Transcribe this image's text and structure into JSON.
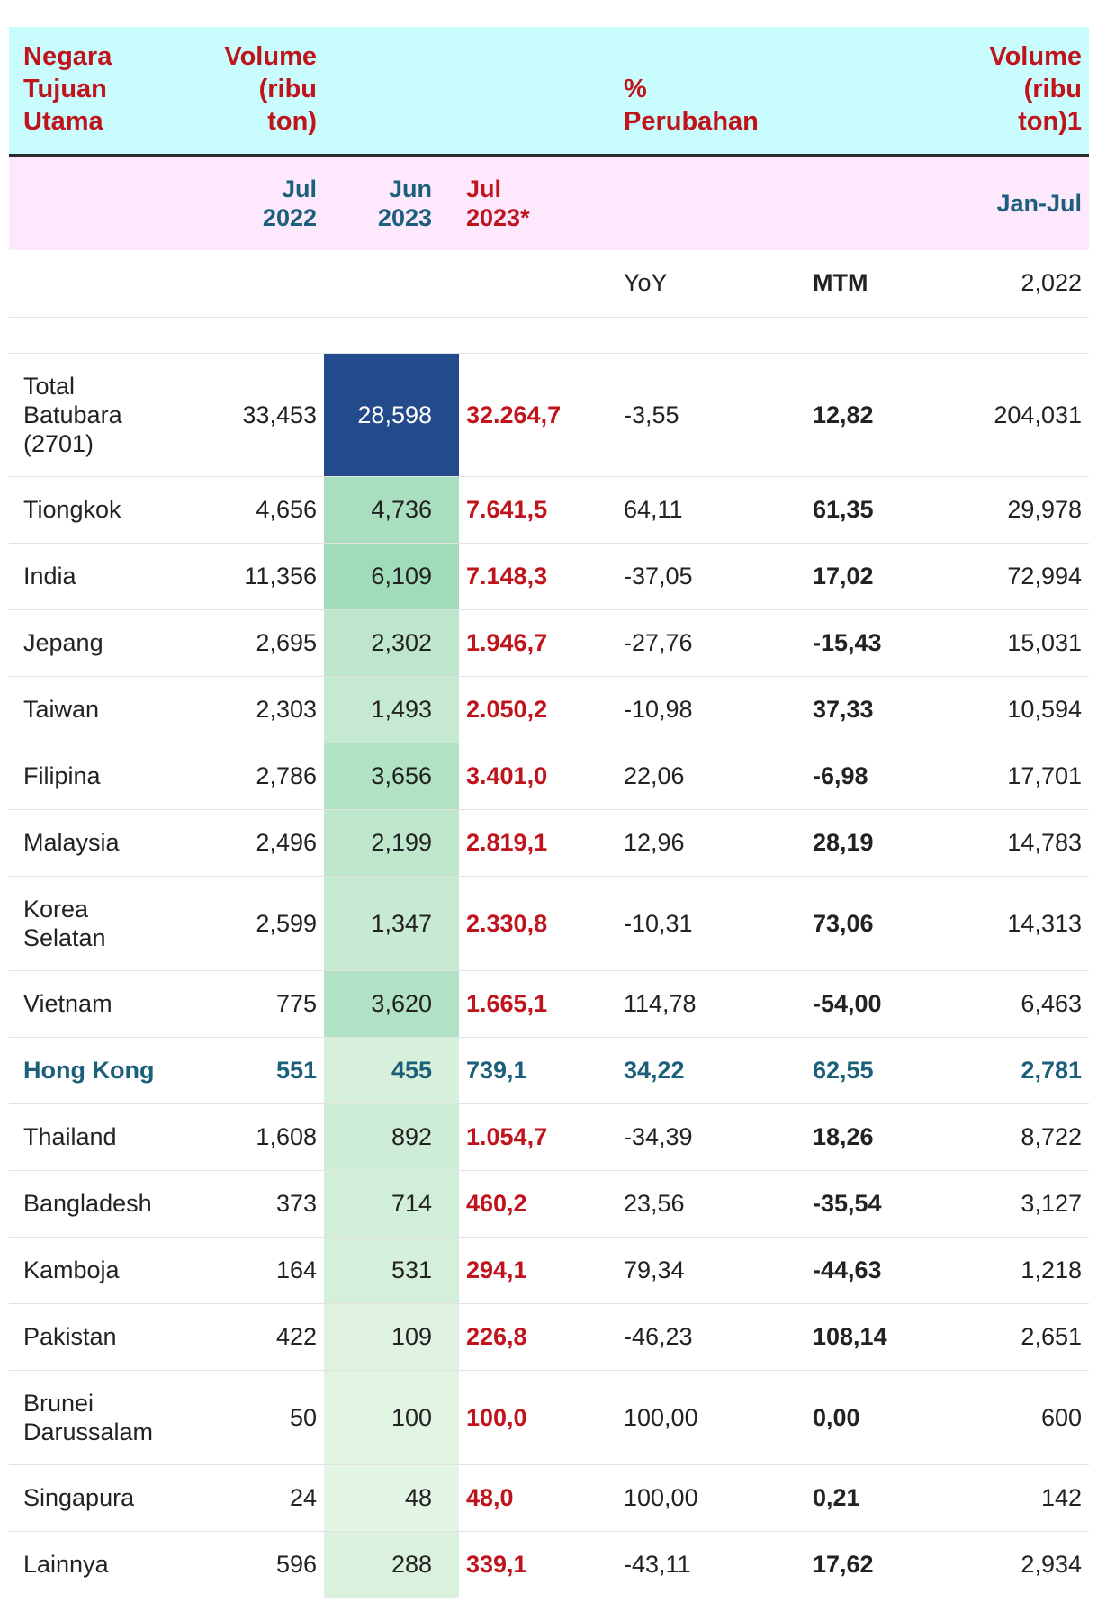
{
  "chart_data": {
    "type": "table",
    "header": {
      "country": "Negara\nTujuan\nUtama",
      "volume": "Volume\n(ribu\nton)",
      "change": "%\nPerubahan",
      "volume_cum": "Volume\n(ribu\nton)1"
    },
    "subheader": {
      "jul2022": "Jul\n2022",
      "jun2023": "Jun\n2023",
      "jul2023": "Jul\n2023*",
      "period": "Jan-Jul"
    },
    "subheader2": {
      "yoy": "YoY",
      "mtm": "MTM",
      "year": "2,022"
    },
    "rows": [
      {
        "country": "Total\nBatubara\n(2701)",
        "jul2022": "33,453",
        "jun2023": "28,598",
        "jul2023": "32.264,7",
        "yoy": "-3,55",
        "mtm": "12,82",
        "janjul": "204,031",
        "jun_value": 28598
      },
      {
        "country": "Tiongkok",
        "jul2022": "4,656",
        "jun2023": "4,736",
        "jul2023": "7.641,5",
        "yoy": "64,11",
        "mtm": "61,35",
        "janjul": "29,978",
        "jun_value": 4736
      },
      {
        "country": "India",
        "jul2022": "11,356",
        "jun2023": "6,109",
        "jul2023": "7.148,3",
        "yoy": "-37,05",
        "mtm": "17,02",
        "janjul": "72,994",
        "jun_value": 6109
      },
      {
        "country": "Jepang",
        "jul2022": "2,695",
        "jun2023": "2,302",
        "jul2023": "1.946,7",
        "yoy": "-27,76",
        "mtm": "-15,43",
        "janjul": "15,031",
        "jun_value": 2302
      },
      {
        "country": "Taiwan",
        "jul2022": "2,303",
        "jun2023": "1,493",
        "jul2023": "2.050,2",
        "yoy": "-10,98",
        "mtm": "37,33",
        "janjul": "10,594",
        "jun_value": 1493
      },
      {
        "country": "Filipina",
        "jul2022": "2,786",
        "jun2023": "3,656",
        "jul2023": "3.401,0",
        "yoy": "22,06",
        "mtm": "-6,98",
        "janjul": "17,701",
        "jun_value": 3656
      },
      {
        "country": "Malaysia",
        "jul2022": "2,496",
        "jun2023": "2,199",
        "jul2023": "2.819,1",
        "yoy": "12,96",
        "mtm": "28,19",
        "janjul": "14,783",
        "jun_value": 2199
      },
      {
        "country": "Korea\nSelatan",
        "jul2022": "2,599",
        "jun2023": "1,347",
        "jul2023": "2.330,8",
        "yoy": "-10,31",
        "mtm": "73,06",
        "janjul": "14,313",
        "jun_value": 1347
      },
      {
        "country": "Vietnam",
        "jul2022": "775",
        "jun2023": "3,620",
        "jul2023": "1.665,1",
        "yoy": "114,78",
        "mtm": "-54,00",
        "janjul": "6,463",
        "jun_value": 3620
      },
      {
        "country": "Hong Kong",
        "jul2022": "551",
        "jun2023": "455",
        "jul2023": "739,1",
        "yoy": "34,22",
        "mtm": "62,55",
        "janjul": "2,781",
        "jun_value": 455,
        "highlight": true
      },
      {
        "country": "Thailand",
        "jul2022": "1,608",
        "jun2023": "892",
        "jul2023": "1.054,7",
        "yoy": "-34,39",
        "mtm": "18,26",
        "janjul": "8,722",
        "jun_value": 892
      },
      {
        "country": "Bangladesh",
        "jul2022": "373",
        "jun2023": "714",
        "jul2023": "460,2",
        "yoy": "23,56",
        "mtm": "-35,54",
        "janjul": "3,127",
        "jun_value": 714
      },
      {
        "country": "Kamboja",
        "jul2022": "164",
        "jun2023": "531",
        "jul2023": "294,1",
        "yoy": "79,34",
        "mtm": "-44,63",
        "janjul": "1,218",
        "jun_value": 531
      },
      {
        "country": "Pakistan",
        "jul2022": "422",
        "jun2023": "109",
        "jul2023": "226,8",
        "yoy": "-46,23",
        "mtm": "108,14",
        "janjul": "2,651",
        "jun_value": 109
      },
      {
        "country": "Brunei\nDarussalam",
        "jul2022": "50",
        "jun2023": "100",
        "jul2023": "100,0",
        "yoy": "100,00",
        "mtm": "0,00",
        "janjul": "600",
        "jun_value": 100
      },
      {
        "country": "Singapura",
        "jul2022": "24",
        "jun2023": "48",
        "jul2023": "48,0",
        "yoy": "100,00",
        "mtm": "0,21",
        "janjul": "142",
        "jun_value": 48
      },
      {
        "country": "Lainnya",
        "jul2022": "596",
        "jun2023": "288",
        "jul2023": "339,1",
        "yoy": "-43,11",
        "mtm": "17,62",
        "janjul": "2,934",
        "jun_value": 288
      }
    ]
  },
  "colors": {
    "header_bg": "#c8fcfd",
    "subheader_bg": "#fde8fd",
    "accent_red": "#c0141c",
    "accent_blue": "#1b5f7a",
    "max_cell": "#234a8a"
  }
}
